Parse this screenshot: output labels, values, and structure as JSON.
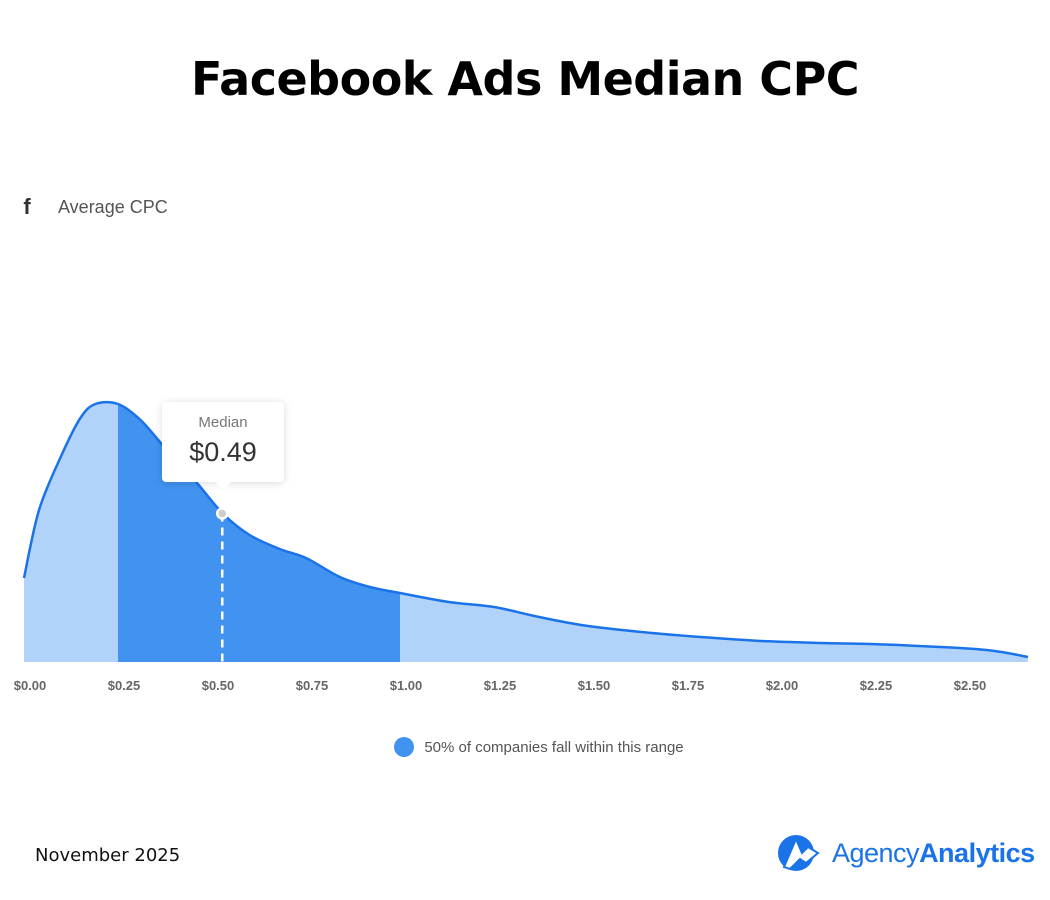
{
  "chart_data": {
    "type": "area",
    "title": "Facebook Ads Median CPC",
    "series_label": "Average CPC",
    "x_tick_labels": [
      "$0.00",
      "$0.25",
      "$0.50",
      "$0.75",
      "$1.00",
      "$1.25",
      "$1.50",
      "$1.75",
      "$2.00",
      "$2.25",
      "$2.50"
    ],
    "x_ticks": [
      0,
      0.25,
      0.5,
      0.75,
      1.0,
      1.25,
      1.5,
      1.75,
      2.0,
      2.25,
      2.5
    ],
    "xlim": [
      0,
      2.67
    ],
    "x": [
      0,
      0.04,
      0.1,
      0.15,
      0.19,
      0.25,
      0.31,
      0.38,
      0.46,
      0.53,
      0.6,
      0.68,
      0.75,
      0.84,
      0.92,
      1.0,
      1.13,
      1.25,
      1.37,
      1.5,
      1.67,
      1.8,
      1.96,
      2.12,
      2.25,
      2.38,
      2.53,
      2.6,
      2.67
    ],
    "density": [
      84,
      152,
      207,
      244,
      258,
      258,
      242,
      212,
      179,
      148,
      127,
      113,
      104,
      85,
      75,
      69,
      60,
      55,
      45,
      36,
      29,
      25,
      21,
      19,
      18,
      16,
      13,
      10,
      5
    ],
    "highlight_range": [
      0.25,
      1.0
    ],
    "median": {
      "label": "Median",
      "value": 0.49,
      "display": "$0.49"
    },
    "legend": "50% of companies fall within this range",
    "grid": false,
    "colors": {
      "line": "#1a73e8",
      "range_fill": "#4292f0",
      "outer_fill": "#b1d3f9"
    }
  },
  "footer": {
    "date": "November 2025",
    "brand_light": "Agency",
    "brand_bold": "Analytics"
  }
}
